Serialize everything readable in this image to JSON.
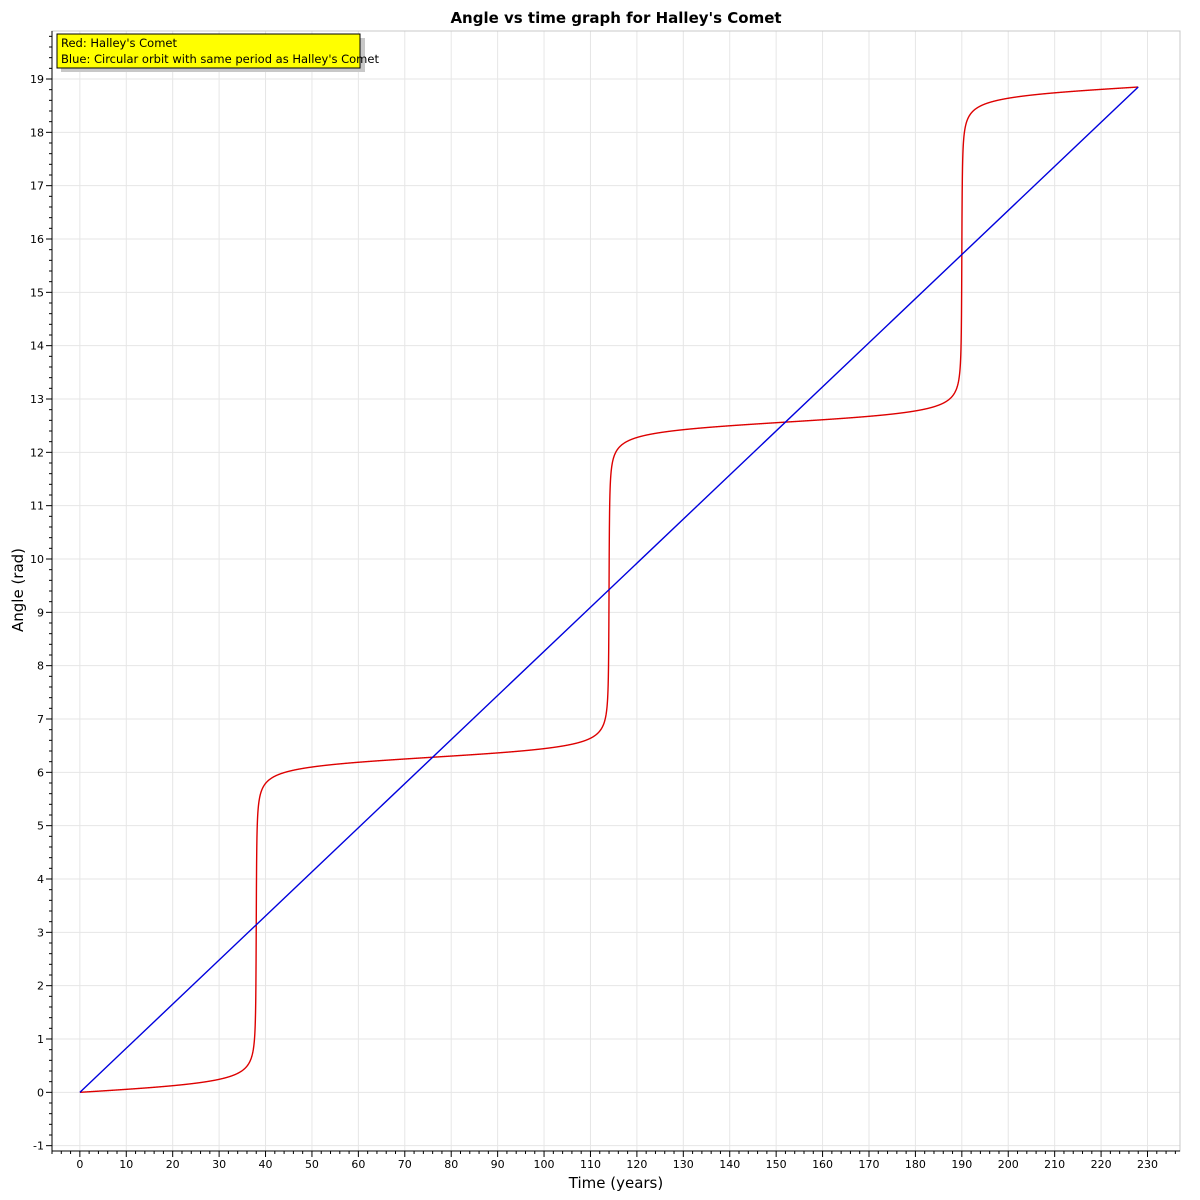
{
  "chart_data": {
    "type": "line",
    "title": "Angle vs time graph for Halley's Comet",
    "xlabel": "Time (years)",
    "ylabel": "Angle (rad)",
    "xlim": [
      -6,
      237
    ],
    "ylim": [
      -1.1,
      19.9
    ],
    "xticks": [
      0,
      10,
      20,
      30,
      40,
      50,
      60,
      70,
      80,
      90,
      100,
      110,
      120,
      130,
      140,
      150,
      160,
      170,
      180,
      190,
      200,
      210,
      220,
      230
    ],
    "yticks": [
      -1,
      0,
      1,
      2,
      3,
      4,
      5,
      6,
      7,
      8,
      9,
      10,
      11,
      12,
      13,
      14,
      15,
      16,
      17,
      18,
      19
    ],
    "grid": true,
    "legend": {
      "position": "top-left",
      "background": "#ffff00",
      "lines": [
        "Red: Halley's Comet",
        "Blue: Circular orbit with same period as Halley's Comet"
      ]
    },
    "series": [
      {
        "color": "#dd0000",
        "model": {
          "kind": "kepler",
          "period": 76,
          "eccentricity": 0.967,
          "t_start": 0,
          "t_end": 228
        }
      },
      {
        "color": "#0000dd",
        "x": [
          0,
          228
        ],
        "y": [
          0,
          18.85
        ]
      }
    ]
  }
}
